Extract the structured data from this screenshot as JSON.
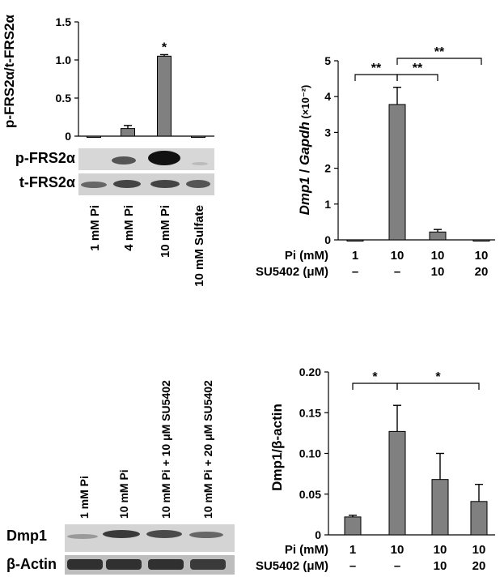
{
  "chart_data": [
    {
      "type": "bar",
      "ylabel": "p-FRS2α/t-FRS2α",
      "categories": [
        "1 mM Pi",
        "4 mM Pi",
        "10 mM Pi",
        "10 mM Sulfate"
      ],
      "values": [
        0.0,
        0.1,
        1.05,
        0.0
      ],
      "errors": [
        0.0,
        0.04,
        0.02,
        0.0
      ],
      "ylim": [
        0,
        1.5
      ],
      "yticks": [
        "0",
        "0.5",
        "1.0",
        "1.5"
      ],
      "significance": [
        "",
        "",
        "*",
        ""
      ],
      "bar_color": "#808080",
      "grid": false,
      "blot_labels": [
        "p-FRS2α",
        "t-FRS2α"
      ]
    },
    {
      "type": "bar",
      "ylabel_italic_1": "Dmp1",
      "ylabel_sep": " / ",
      "ylabel_italic_2": "Gapdh",
      "ylabel_unit": " (×10⁻²)",
      "categories": [
        "1",
        "10",
        "10",
        "10"
      ],
      "values": [
        0.0,
        3.78,
        0.22,
        0.0
      ],
      "errors": [
        0.0,
        0.48,
        0.07,
        0.0
      ],
      "ylim": [
        0,
        5
      ],
      "yticks": [
        "0",
        "1",
        "2",
        "3",
        "4",
        "5"
      ],
      "conditions": [
        {
          "label": "Pi (mM)",
          "values": [
            "1",
            "10",
            "10",
            "10"
          ]
        },
        {
          "label": "SU5402 (μM)",
          "values": [
            "–",
            "–",
            "10",
            "20"
          ]
        }
      ],
      "brackets": [
        "**",
        "**",
        "**"
      ],
      "bar_color": "#808080",
      "grid": false
    },
    {
      "type": "bar",
      "ylabel": "Dmp1/β-actin",
      "categories": [
        "1",
        "10",
        "10",
        "10"
      ],
      "values": [
        0.022,
        0.127,
        0.068,
        0.041
      ],
      "errors": [
        0.002,
        0.032,
        0.032,
        0.021
      ],
      "ylim": [
        0,
        0.2
      ],
      "yticks": [
        "0",
        "0.05",
        "0.10",
        "0.15",
        "0.20"
      ],
      "conditions": [
        {
          "label": "Pi (mM)",
          "values": [
            "1",
            "10",
            "10",
            "10"
          ]
        },
        {
          "label": "SU5402 (μM)",
          "values": [
            "–",
            "–",
            "10",
            "20"
          ]
        }
      ],
      "brackets": [
        "*",
        "*"
      ],
      "bar_color": "#808080",
      "grid": false
    }
  ],
  "blot_c": {
    "lane_labels": [
      "1 mM Pi",
      "10 mM Pi",
      "10 mM Pi + 10 μM SU5402",
      "10 mM Pi + 20 μM SU5402"
    ],
    "row_labels": [
      "Dmp1",
      "β-Actin"
    ]
  }
}
